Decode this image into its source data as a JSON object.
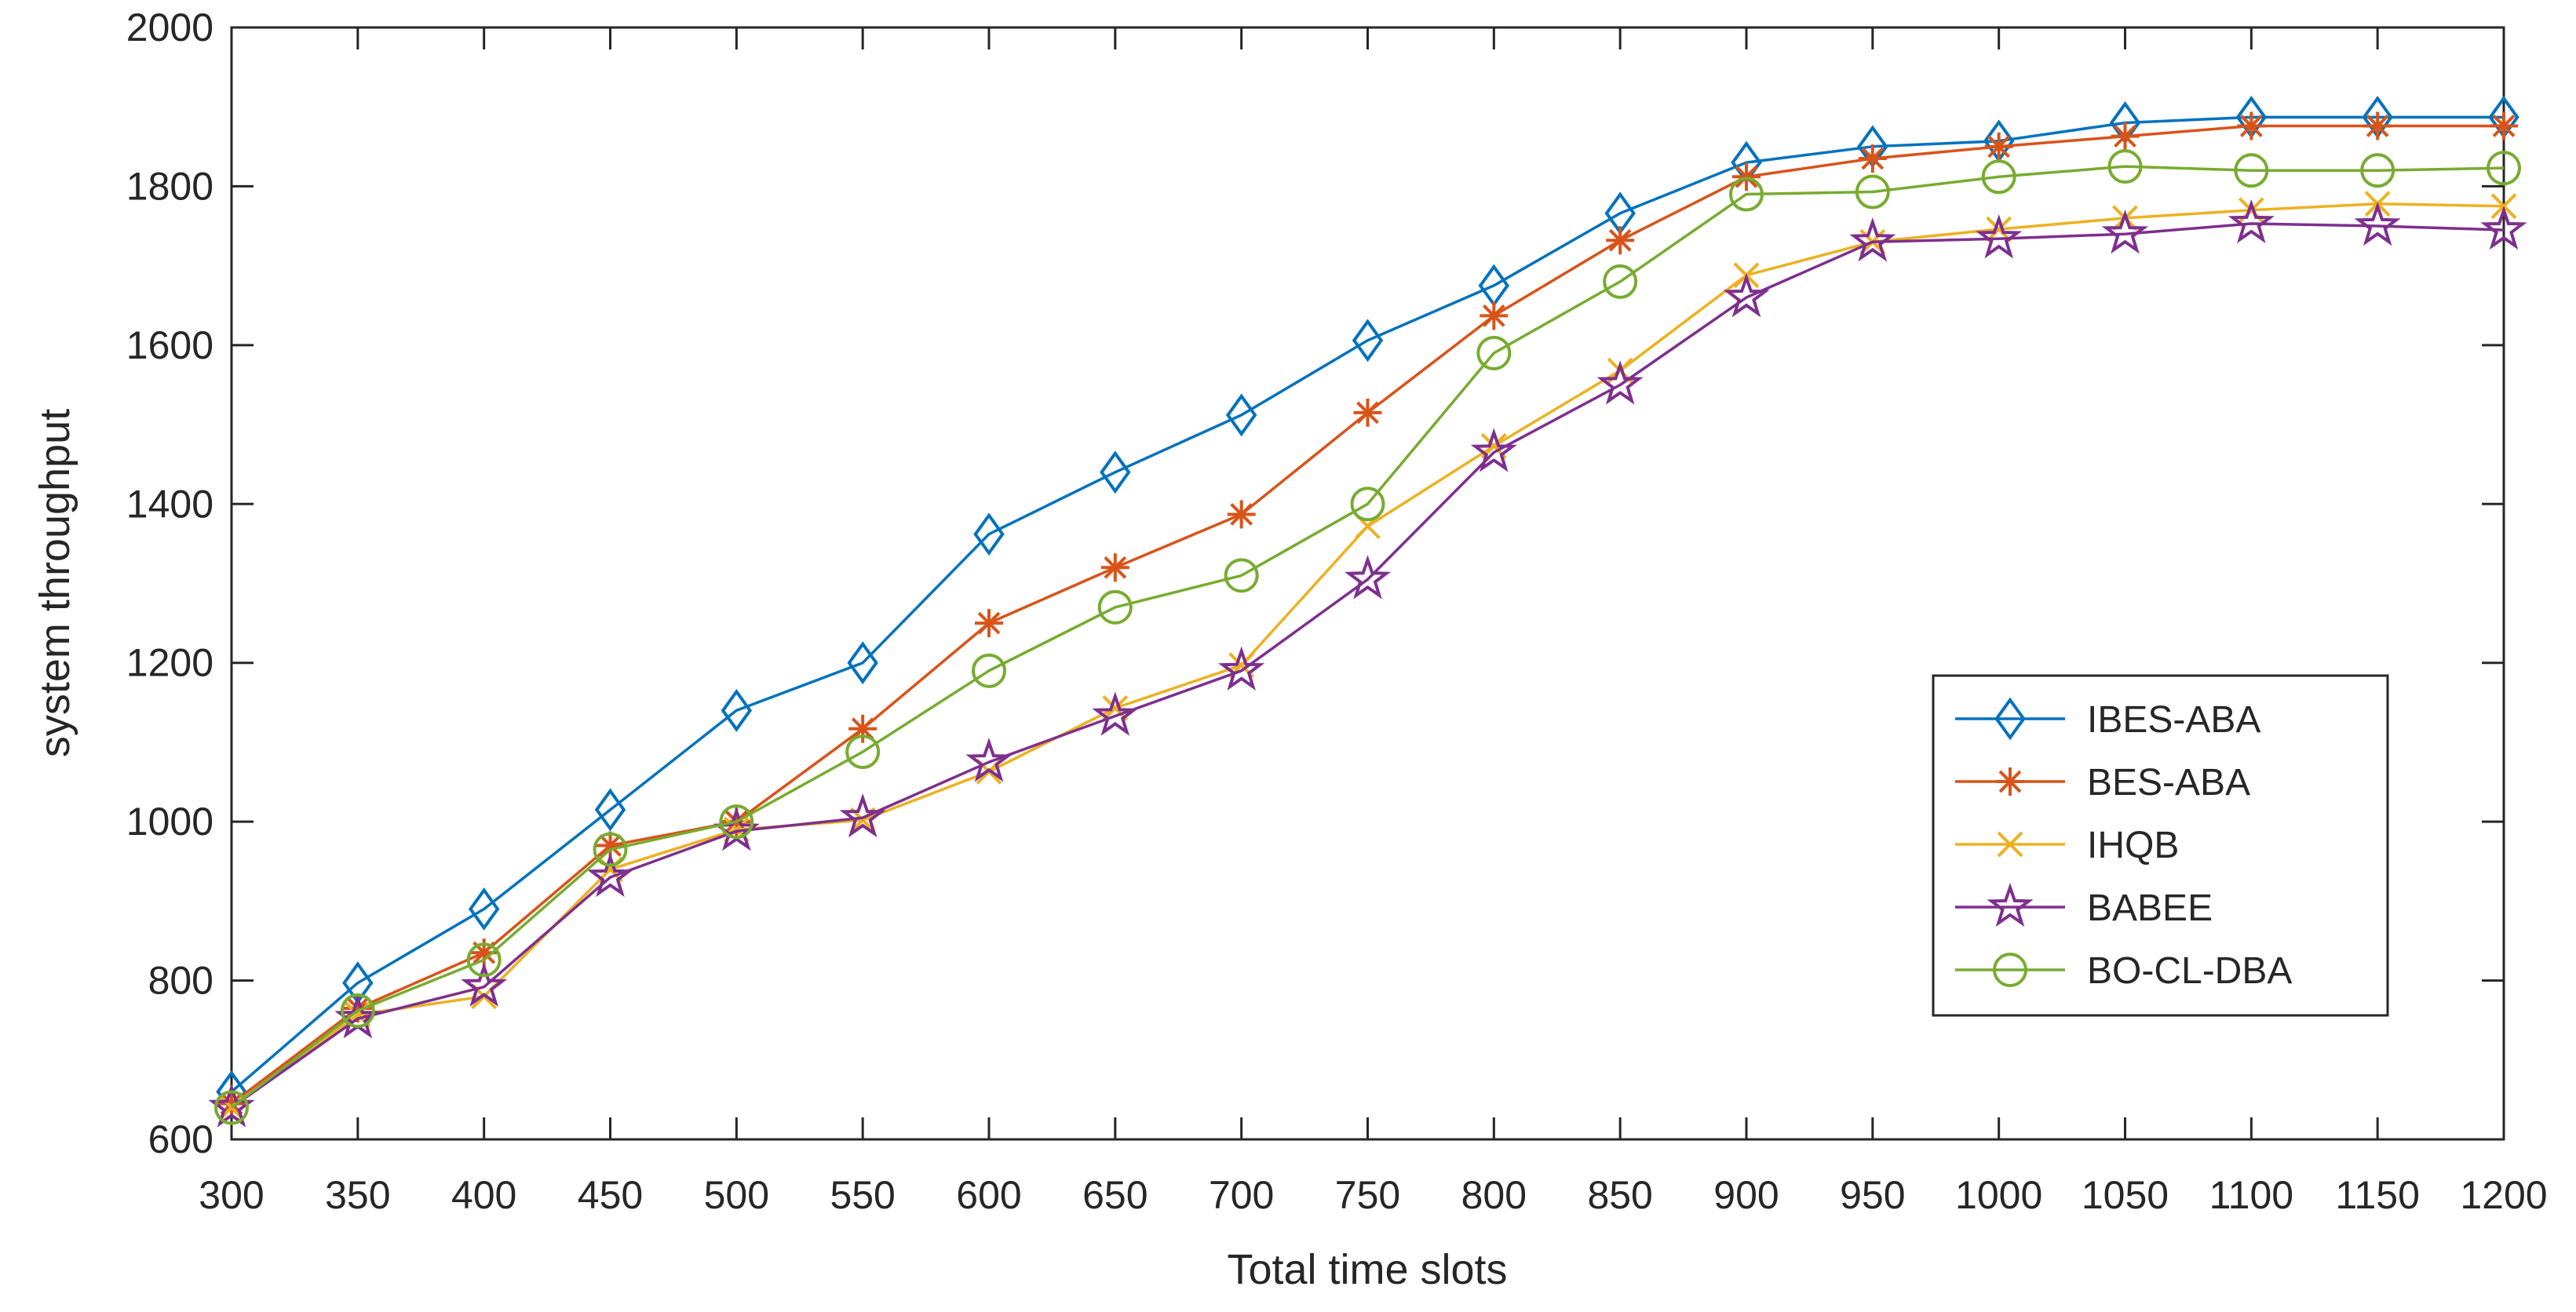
{
  "chart_data": {
    "type": "line",
    "title": "",
    "xlabel": "Total time slots",
    "ylabel": "system throughput",
    "xlim": [
      300,
      1200
    ],
    "ylim": [
      600,
      2000
    ],
    "x": [
      300,
      350,
      400,
      450,
      500,
      550,
      600,
      650,
      700,
      750,
      800,
      850,
      900,
      950,
      1000,
      1050,
      1100,
      1150,
      1200
    ],
    "x_ticks": [
      "300",
      "350",
      "400",
      "450",
      "500",
      "550",
      "600",
      "650",
      "700",
      "750",
      "800",
      "850",
      "900",
      "950",
      "1000",
      "1050",
      "1100",
      "1150",
      "1200"
    ],
    "y_ticks": [
      "600",
      "800",
      "1000",
      "1200",
      "1400",
      "1600",
      "1800",
      "2000"
    ],
    "grid": false,
    "legend_position": "right-lower",
    "series": [
      {
        "name": "IBES-ABA",
        "color": "#0072BD",
        "marker": "diamond",
        "values": [
          660,
          797,
          890,
          1015,
          1140,
          1200,
          1362,
          1440,
          1512,
          1606,
          1675,
          1766,
          1830,
          1850,
          1857,
          1880,
          1887,
          1887,
          1887
        ]
      },
      {
        "name": "BES-ABA",
        "color": "#D95319",
        "marker": "asterisk",
        "values": [
          645,
          765,
          835,
          970,
          1000,
          1117,
          1250,
          1320,
          1387,
          1515,
          1637,
          1732,
          1812,
          1835,
          1850,
          1863,
          1876,
          1876,
          1876
        ]
      },
      {
        "name": "IHQB",
        "color": "#EDB120",
        "marker": "x",
        "values": [
          640,
          757,
          780,
          940,
          990,
          1002,
          1063,
          1143,
          1197,
          1372,
          1473,
          1568,
          1688,
          1730,
          1746,
          1760,
          1770,
          1778,
          1775
        ]
      },
      {
        "name": "BABEE",
        "color": "#7E2F8E",
        "marker": "star",
        "values": [
          640,
          752,
          792,
          930,
          988,
          1005,
          1075,
          1133,
          1190,
          1305,
          1465,
          1550,
          1660,
          1730,
          1734,
          1740,
          1753,
          1750,
          1745
        ]
      },
      {
        "name": "BO-CL-DBA",
        "color": "#77AC30",
        "marker": "circle",
        "values": [
          640,
          762,
          826,
          965,
          1000,
          1088,
          1190,
          1270,
          1310,
          1400,
          1590,
          1680,
          1790,
          1793,
          1812,
          1825,
          1820,
          1820,
          1823
        ]
      }
    ]
  }
}
